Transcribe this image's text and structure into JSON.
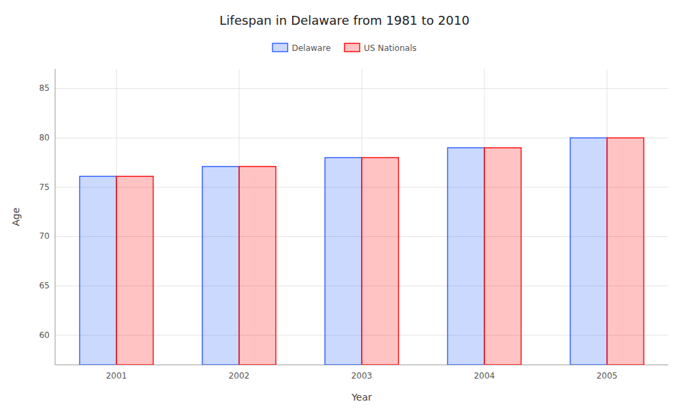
{
  "chart_data": {
    "type": "bar",
    "title": "Lifespan in Delaware from 1981 to 2010",
    "x_label": "Year",
    "y_label": "Age",
    "categories": [
      "2001",
      "2002",
      "2003",
      "2004",
      "2005"
    ],
    "series": [
      {
        "name": "Delaware",
        "color": "#3366FF",
        "values": [
          76.1,
          77.1,
          78.0,
          79.0,
          80.0
        ]
      },
      {
        "name": "US Nationals",
        "color": "#FF1111",
        "values": [
          76.1,
          77.1,
          78.0,
          79.0,
          80.0
        ]
      }
    ],
    "ylim": [
      57,
      87
    ],
    "yticks": [
      60,
      65,
      70,
      75,
      80,
      85
    ],
    "grid": true,
    "legend": "top"
  }
}
